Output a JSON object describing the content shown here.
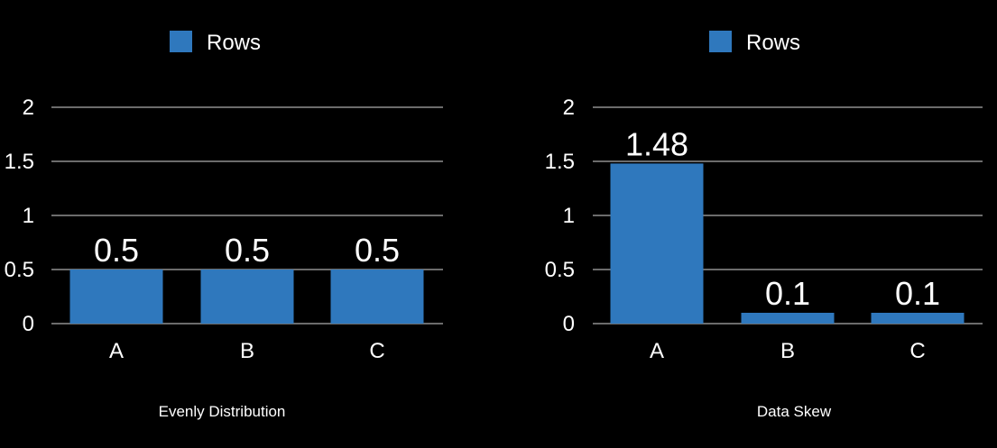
{
  "colors": {
    "background": "#000000",
    "bar": "#2f78bd",
    "text": "#ffffff",
    "grid": "#ffffff"
  },
  "chart_data": [
    {
      "type": "bar",
      "title": "Evenly Distribution",
      "categories": [
        "A",
        "B",
        "C"
      ],
      "series": [
        {
          "name": "Rows",
          "values": [
            0.5,
            0.5,
            0.5
          ],
          "color": "#2f78bd"
        }
      ],
      "data_labels": [
        "0.5",
        "0.5",
        "0.5"
      ],
      "ylim": [
        0,
        2
      ],
      "yticks": [
        0,
        0.5,
        1,
        1.5,
        2
      ],
      "ytick_labels": [
        "0",
        "0.5",
        "1",
        "1.5",
        "2"
      ],
      "grid": true,
      "legend": "top-center"
    },
    {
      "type": "bar",
      "title": "Data Skew",
      "categories": [
        "A",
        "B",
        "C"
      ],
      "series": [
        {
          "name": "Rows",
          "values": [
            1.48,
            0.1,
            0.1
          ],
          "color": "#2f78bd"
        }
      ],
      "data_labels": [
        "1.48",
        "0.1",
        "0.1"
      ],
      "ylim": [
        0,
        2
      ],
      "yticks": [
        0,
        0.5,
        1,
        1.5,
        2
      ],
      "ytick_labels": [
        "0",
        "0.5",
        "1",
        "1.5",
        "2"
      ],
      "grid": true,
      "legend": "top-center"
    }
  ]
}
